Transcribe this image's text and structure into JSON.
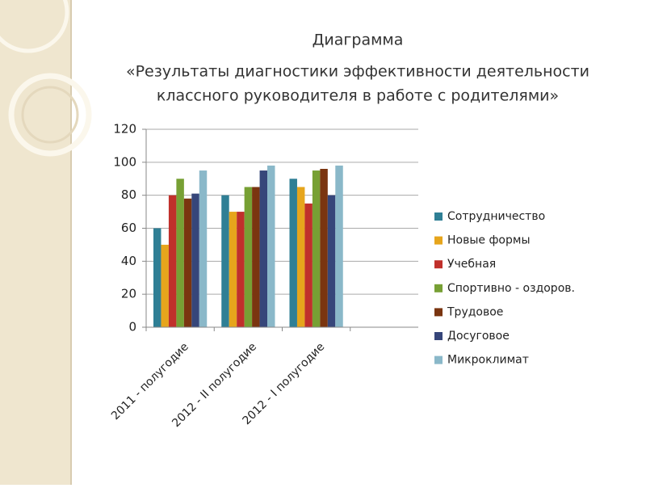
{
  "chart_data": {
    "type": "bar",
    "title": "Диаграмма",
    "subtitle": [
      "«Результаты диагностики эффективности деятельности",
      "классного руководителя в работе с родителями»"
    ],
    "categories": [
      "2011 - полугодие",
      "2012 - II полугодие",
      "2012 - I полугодие",
      null
    ],
    "series": [
      {
        "name": "Сотрудничество",
        "color": "#2f7f95",
        "values": [
          60,
          80,
          90,
          null
        ]
      },
      {
        "name": "Новые формы",
        "color": "#e6a51c",
        "values": [
          50,
          70,
          85,
          null
        ]
      },
      {
        "name": "Учебная",
        "color": "#c0302b",
        "values": [
          80,
          70,
          75,
          null
        ]
      },
      {
        "name": "Спортивно - оздоров.",
        "color": "#77a034",
        "values": [
          90,
          85,
          95,
          null
        ]
      },
      {
        "name": "Трудовое",
        "color": "#7a3510",
        "values": [
          78,
          85,
          96,
          null
        ]
      },
      {
        "name": "Досуговое",
        "color": "#36467a",
        "values": [
          81,
          95,
          80,
          null
        ]
      },
      {
        "name": "Микроклимат",
        "color": "#8ab8c9",
        "values": [
          95,
          98,
          98,
          null
        ]
      }
    ],
    "ylim": [
      0,
      120
    ],
    "yticks": [
      0,
      20,
      40,
      60,
      80,
      100,
      120
    ],
    "grid": true,
    "legend": "right"
  }
}
